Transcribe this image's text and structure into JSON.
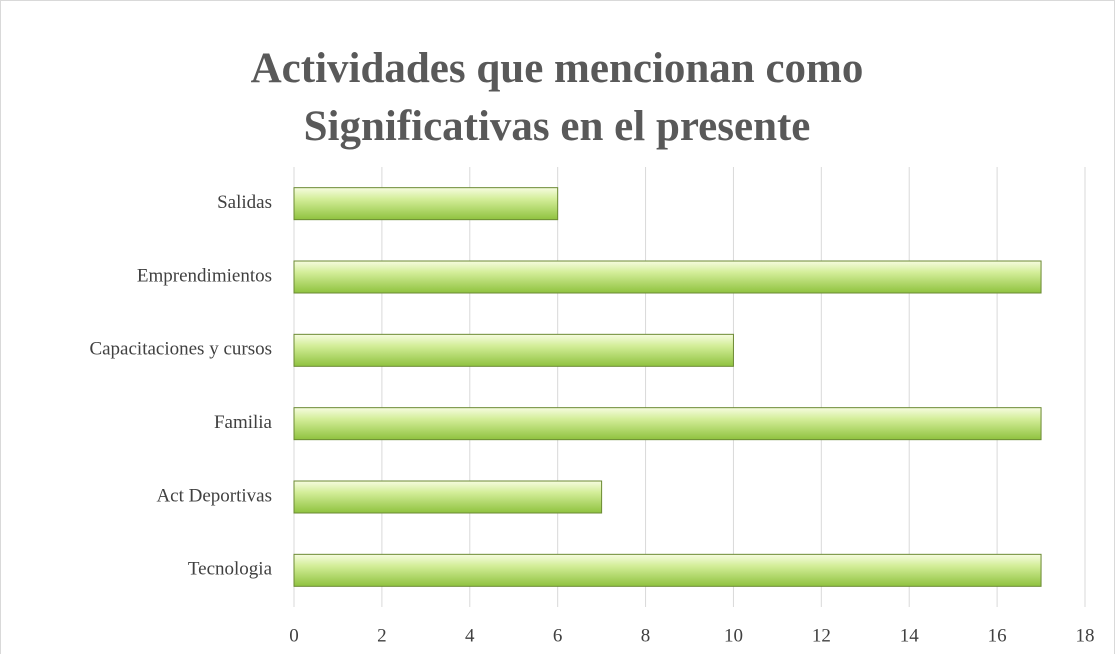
{
  "chart_data": {
    "type": "barh",
    "title": "Actividades que mencionan como Significativas en el presente",
    "categories": [
      "Salidas",
      "Emprendimientos",
      "Capacitaciones y cursos",
      "Familia",
      "Act Deportivas",
      "Tecnologia"
    ],
    "values": [
      6,
      17,
      10,
      17,
      7,
      17
    ],
    "color": "#9bcc4a",
    "xlim": [
      0,
      18
    ],
    "xticks": [
      0,
      2,
      4,
      6,
      8,
      10,
      12,
      14,
      16,
      18
    ],
    "grid": true
  }
}
